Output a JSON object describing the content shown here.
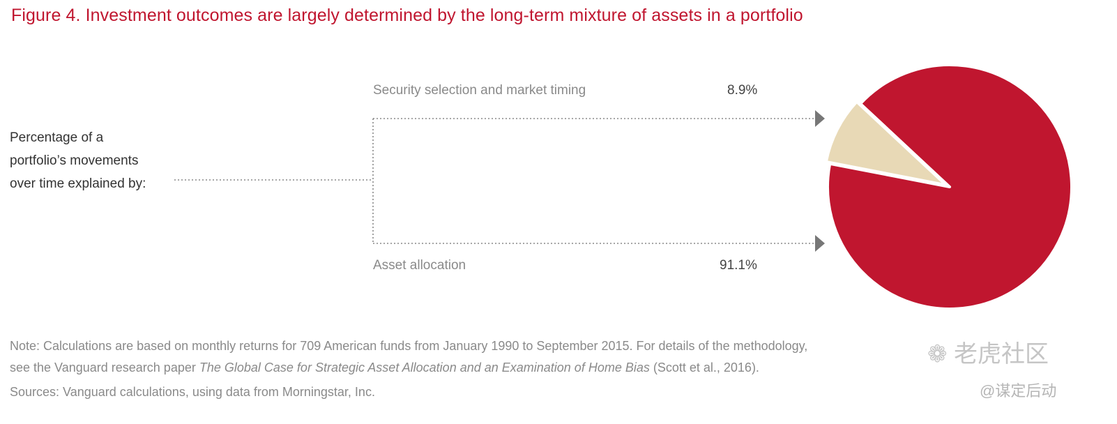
{
  "title": "Figure 4. Investment outcomes are largely determined by the long-term mixture of assets in a portfolio",
  "explain_lines": [
    "Percentage of a",
    "portfolio’s movements",
    "over time explained by:"
  ],
  "note": {
    "line1": "Note: Calculations are based on monthly returns for 709 American funds from January 1990 to September 2015. For details of the methodology,",
    "line2_prefix": "see the Vanguard research paper ",
    "line2_italic": "The Global Case for Strategic Asset Allocation and an Examination of Home Bias",
    "line2_suffix": " (Scott et al., 2016)."
  },
  "sources": "Sources: Vanguard calculations, using data from Morningstar, Inc.",
  "watermark": {
    "logo_text": "老虎社区",
    "handle": "@谋定后动"
  },
  "colors": {
    "title": "#c0162f",
    "security": "#e8d9b6",
    "asset": "#c0162f",
    "connector": "#888888"
  },
  "chart_data": {
    "type": "pie",
    "series": [
      {
        "name": "Security selection and market timing",
        "value": 8.9,
        "label": "8.9%"
      },
      {
        "name": "Asset allocation",
        "value": 91.1,
        "label": "91.1%"
      }
    ],
    "exploded_slice": "Security selection and market timing"
  }
}
